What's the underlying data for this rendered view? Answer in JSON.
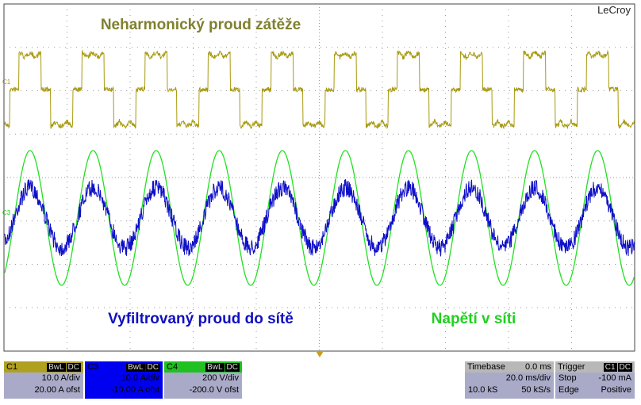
{
  "screen": {
    "brand": "LeCroy",
    "trace_markers": [
      "C1",
      "C3"
    ],
    "annotations": {
      "top": "Neharmonický proud zátěže",
      "bottom_left": "Vyfiltrovaný proud do sítě",
      "bottom_right": "Napětí v síti"
    },
    "channels": [
      {
        "name": "C1",
        "bwl": "BwL",
        "coupling": "DC",
        "scale": "10.0 A/div",
        "offset": "20.00 A ofst"
      },
      {
        "name": "C3",
        "bwl": "BwL",
        "coupling": "DC",
        "scale": "10.0 A/div",
        "offset": "-10.00 A ofst"
      },
      {
        "name": "C4",
        "bwl": "BwL",
        "coupling": "DC",
        "scale": "200 V/div",
        "offset": "-200.0 V ofst"
      }
    ],
    "timebase": {
      "label": "Timebase",
      "delay": "0.0 ms",
      "scale": "20.0 ms/div",
      "samples": "10.0 kS",
      "rate": "50 kS/s"
    },
    "trigger": {
      "label": "Trigger",
      "source": "C1",
      "coupling": "DC",
      "mode": "Stop",
      "level": "-100 mA",
      "type": "Edge",
      "slope": "Positive"
    }
  }
}
